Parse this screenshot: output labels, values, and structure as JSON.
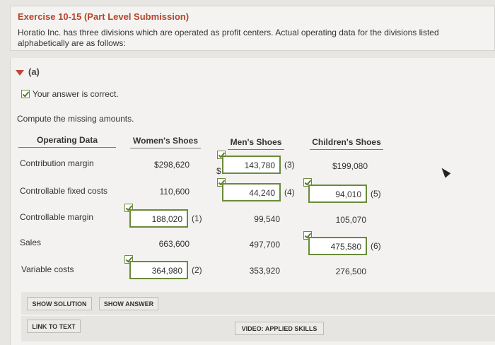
{
  "exercise": {
    "title": "Exercise 10-15 (Part Level Submission)",
    "description": "Horatio Inc. has three divisions which are operated as profit centers. Actual operating data for the divisions listed alphabetically are as follows:"
  },
  "part": {
    "label": "(a)"
  },
  "status": {
    "correct_text": "Your answer is correct."
  },
  "instruction": "Compute the missing amounts.",
  "table": {
    "headers": [
      "Operating Data",
      "Women's Shoes",
      "Men's Shoes",
      "Children's Shoes"
    ],
    "rows": [
      {
        "label": "Contribution margin",
        "womens": "$298,620",
        "mens": "143,780",
        "mens_note": "(3)",
        "mens_prefix": "$",
        "childrens": "$199,080"
      },
      {
        "label": "Controllable fixed costs",
        "womens": "110,600",
        "mens": "44,240",
        "mens_note": "(4)",
        "childrens": "94,010",
        "childrens_note": "(5)"
      },
      {
        "label": "Controllable margin",
        "womens": "188,020",
        "womens_note": "(1)",
        "mens": "99,540",
        "childrens": "105,070"
      },
      {
        "label": "Sales",
        "womens": "663,600",
        "mens": "497,700",
        "childrens": "475,580",
        "childrens_note": "(6)"
      },
      {
        "label": "Variable costs",
        "womens": "364,980",
        "womens_note": "(2)",
        "mens": "353,920",
        "childrens": "276,500"
      }
    ]
  },
  "buttons": {
    "show_solution": "SHOW SOLUTION",
    "show_answer": "SHOW ANSWER",
    "link_to_text": "LINK TO TEXT",
    "video": "VIDEO: APPLIED SKILLS"
  }
}
